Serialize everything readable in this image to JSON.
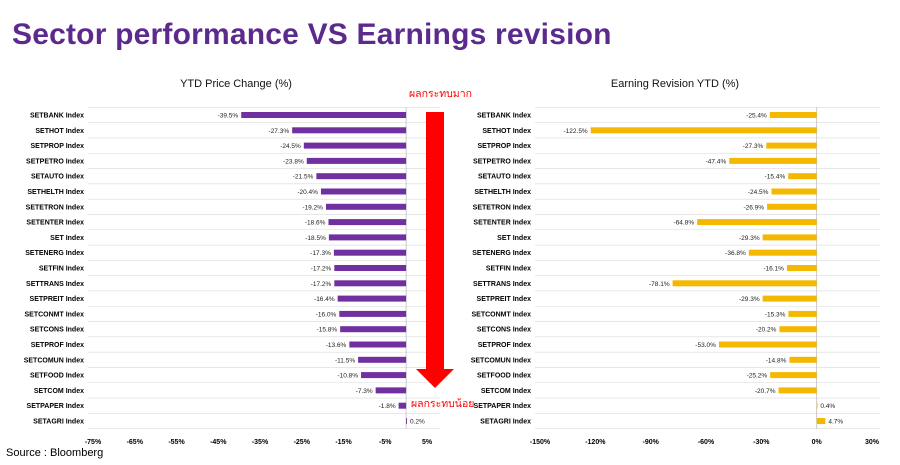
{
  "page": {
    "title": "Sector performance VS Earnings revision",
    "source": "Source : Bloomberg",
    "colors": {
      "title": "#5b2a8c",
      "bar_left": "#7030a0",
      "bar_right": "#f5b800",
      "arrow": "#ff0000"
    }
  },
  "chart_data": [
    {
      "type": "bar",
      "orientation": "horizontal",
      "title": "YTD Price Change (%)",
      "categories": [
        "SETBANK Index",
        "SETHOT Index",
        "SETPROP Index",
        "SETPETRO Index",
        "SETAUTO Index",
        "SETHELTH Index",
        "SETETRON Index",
        "SETENTER Index",
        "SET Index",
        "SETENERG Index",
        "SETFIN Index",
        "SETTRANS Index",
        "SETPREIT Index",
        "SETCONMT Index",
        "SETCONS Index",
        "SETPROF Index",
        "SETCOMUN Index",
        "SETFOOD Index",
        "SETCOM Index",
        "SETPAPER Index",
        "SETAGRI Index"
      ],
      "values": [
        -39.5,
        -27.3,
        -24.5,
        -23.8,
        -21.5,
        -20.4,
        -19.2,
        -18.6,
        -18.5,
        -17.3,
        -17.2,
        -17.2,
        -16.4,
        -16.0,
        -15.8,
        -13.6,
        -11.5,
        -10.8,
        -7.3,
        -1.8,
        0.2
      ],
      "value_labels": [
        "-39.5%",
        "-27.3%",
        "-24.5%",
        "-23.8%",
        "-21.5%",
        "-20.4%",
        "-19.2%",
        "-18.6%",
        "-18.5%",
        "-17.3%",
        "-17.2%",
        "-17.2%",
        "-16.4%",
        "-16.0%",
        "-15.8%",
        "-13.6%",
        "-11.5%",
        "-10.8%",
        "-7.3%",
        "-1.8%",
        "0.2%"
      ],
      "xlim": [
        -75,
        5
      ],
      "ticks": [
        -75,
        -65,
        -55,
        -45,
        -35,
        -25,
        -15,
        -5,
        5
      ],
      "tick_labels": [
        "-75%",
        "-65%",
        "-55%",
        "-45%",
        "-35%",
        "-25%",
        "-15%",
        "-5%",
        "5%"
      ],
      "grid": "horizontal",
      "annotations": {
        "top": "ผลกระทบมาก",
        "bottom": "ผลกระทบน้อย"
      }
    },
    {
      "type": "bar",
      "orientation": "horizontal",
      "title": "Earning Revision YTD (%)",
      "categories": [
        "SETBANK Index",
        "SETHOT Index",
        "SETPROP Index",
        "SETPETRO Index",
        "SETAUTO Index",
        "SETHELTH Index",
        "SETETRON Index",
        "SETENTER Index",
        "SET Index",
        "SETENERG Index",
        "SETFIN Index",
        "SETTRANS Index",
        "SETPREIT Index",
        "SETCONMT Index",
        "SETCONS Index",
        "SETPROF Index",
        "SETCOMUN Index",
        "SETFOOD Index",
        "SETCOM Index",
        "SETPAPER Index",
        "SETAGRI Index"
      ],
      "values": [
        -25.4,
        -122.5,
        -27.3,
        -47.4,
        -15.4,
        -24.5,
        -26.9,
        -64.8,
        -29.3,
        -36.8,
        -16.1,
        -78.1,
        -29.3,
        -15.3,
        -20.2,
        -53.0,
        -14.8,
        -25.2,
        -20.7,
        0.4,
        4.7
      ],
      "value_labels": [
        "-25.4%",
        "-122.5%",
        "-27.3%",
        "-47.4%",
        "-15.4%",
        "-24.5%",
        "-26.9%",
        "-64.8%",
        "-29.3%",
        "-36.8%",
        "-16.1%",
        "-78.1%",
        "-29.3%",
        "-15.3%",
        "-20.2%",
        "-53.0%",
        "-14.8%",
        "-25.2%",
        "-20.7%",
        "0.4%",
        "4.7%"
      ],
      "xlim": [
        -150,
        30
      ],
      "ticks": [
        -150,
        -120,
        -90,
        -60,
        -30,
        0,
        30
      ],
      "tick_labels": [
        "-150%",
        "-120%",
        "-90%",
        "-60%",
        "-30%",
        "0%",
        "30%"
      ],
      "grid": "horizontal"
    }
  ]
}
